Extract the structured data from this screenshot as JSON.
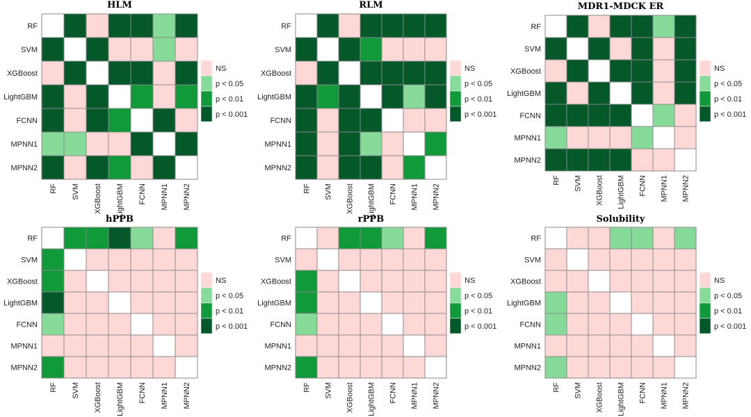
{
  "chart_data": [
    {
      "type": "heatmap",
      "title": "HLM",
      "categories": [
        "RF",
        "SVM",
        "XGBoost",
        "LightGBM",
        "FCNN",
        "MPNN1",
        "MPNN2"
      ],
      "matrix": [
        [
          "diag",
          "p<0.001",
          "NS",
          "p<0.001",
          "p<0.001",
          "p<0.05",
          "p<0.001"
        ],
        [
          "p<0.001",
          "diag",
          "p<0.001",
          "NS",
          "NS",
          "p<0.05",
          "NS"
        ],
        [
          "NS",
          "p<0.001",
          "diag",
          "p<0.001",
          "p<0.001",
          "NS",
          "p<0.001"
        ],
        [
          "p<0.001",
          "NS",
          "p<0.001",
          "diag",
          "p<0.01",
          "NS",
          "p<0.01"
        ],
        [
          "p<0.001",
          "NS",
          "p<0.001",
          "p<0.01",
          "diag",
          "p<0.001",
          "NS"
        ],
        [
          "p<0.05",
          "p<0.05",
          "NS",
          "NS",
          "p<0.001",
          "diag",
          "p<0.001"
        ],
        [
          "p<0.001",
          "NS",
          "p<0.001",
          "p<0.01",
          "NS",
          "p<0.001",
          "diag"
        ]
      ]
    },
    {
      "type": "heatmap",
      "title": "RLM",
      "categories": [
        "RF",
        "SVM",
        "XGBoost",
        "LightGBM",
        "FCNN",
        "MPNN1",
        "MPNN2"
      ],
      "matrix": [
        [
          "diag",
          "p<0.001",
          "NS",
          "p<0.001",
          "p<0.001",
          "p<0.001",
          "p<0.001"
        ],
        [
          "p<0.001",
          "diag",
          "p<0.001",
          "p<0.01",
          "NS",
          "NS",
          "NS"
        ],
        [
          "NS",
          "p<0.001",
          "diag",
          "p<0.001",
          "p<0.001",
          "p<0.001",
          "p<0.001"
        ],
        [
          "p<0.001",
          "p<0.01",
          "p<0.001",
          "diag",
          "p<0.001",
          "p<0.05",
          "p<0.001"
        ],
        [
          "p<0.001",
          "NS",
          "p<0.001",
          "p<0.001",
          "diag",
          "NS",
          "NS"
        ],
        [
          "p<0.001",
          "NS",
          "p<0.001",
          "p<0.05",
          "NS",
          "diag",
          "p<0.01"
        ],
        [
          "p<0.001",
          "NS",
          "p<0.001",
          "p<0.001",
          "NS",
          "p<0.01",
          "diag"
        ]
      ]
    },
    {
      "type": "heatmap",
      "title": "MDR1-MDCK ER",
      "categories": [
        "RF",
        "SVM",
        "XGBoost",
        "LightGBM",
        "FCNN",
        "MPNN1",
        "MPNN2"
      ],
      "matrix": [
        [
          "diag",
          "p<0.001",
          "NS",
          "p<0.001",
          "p<0.001",
          "p<0.05",
          "p<0.001"
        ],
        [
          "p<0.001",
          "diag",
          "p<0.001",
          "NS",
          "p<0.001",
          "NS",
          "p<0.001"
        ],
        [
          "NS",
          "p<0.001",
          "diag",
          "p<0.001",
          "p<0.001",
          "NS",
          "p<0.001"
        ],
        [
          "p<0.001",
          "NS",
          "p<0.001",
          "diag",
          "p<0.001",
          "NS",
          "p<0.001"
        ],
        [
          "p<0.001",
          "p<0.001",
          "p<0.001",
          "p<0.001",
          "diag",
          "p<0.05",
          "NS"
        ],
        [
          "p<0.05",
          "NS",
          "NS",
          "NS",
          "p<0.05",
          "diag",
          "NS"
        ],
        [
          "p<0.001",
          "p<0.001",
          "p<0.001",
          "p<0.001",
          "NS",
          "NS",
          "diag"
        ]
      ]
    },
    {
      "type": "heatmap",
      "title": "hPPB",
      "categories": [
        "RF",
        "SVM",
        "XGBoost",
        "LightGBM",
        "FCNN",
        "MPNN1",
        "MPNN2"
      ],
      "matrix": [
        [
          "diag",
          "p<0.01",
          "p<0.01",
          "p<0.001",
          "p<0.05",
          "NS",
          "p<0.01"
        ],
        [
          "p<0.01",
          "diag",
          "NS",
          "NS",
          "NS",
          "NS",
          "NS"
        ],
        [
          "p<0.01",
          "NS",
          "diag",
          "NS",
          "NS",
          "NS",
          "NS"
        ],
        [
          "p<0.001",
          "NS",
          "NS",
          "diag",
          "NS",
          "NS",
          "NS"
        ],
        [
          "p<0.05",
          "NS",
          "NS",
          "NS",
          "diag",
          "NS",
          "NS"
        ],
        [
          "NS",
          "NS",
          "NS",
          "NS",
          "NS",
          "diag",
          "NS"
        ],
        [
          "p<0.01",
          "NS",
          "NS",
          "NS",
          "NS",
          "NS",
          "diag"
        ]
      ]
    },
    {
      "type": "heatmap",
      "title": "rPPB",
      "categories": [
        "RF",
        "SVM",
        "XGBoost",
        "LightGBM",
        "FCNN",
        "MPNN1",
        "MPNN2"
      ],
      "matrix": [
        [
          "diag",
          "NS",
          "p<0.01",
          "p<0.01",
          "p<0.05",
          "NS",
          "p<0.01"
        ],
        [
          "NS",
          "diag",
          "NS",
          "NS",
          "NS",
          "NS",
          "NS"
        ],
        [
          "p<0.01",
          "NS",
          "diag",
          "NS",
          "NS",
          "NS",
          "NS"
        ],
        [
          "p<0.01",
          "NS",
          "NS",
          "diag",
          "NS",
          "NS",
          "NS"
        ],
        [
          "p<0.05",
          "NS",
          "NS",
          "NS",
          "diag",
          "NS",
          "NS"
        ],
        [
          "NS",
          "NS",
          "NS",
          "NS",
          "NS",
          "diag",
          "NS"
        ],
        [
          "p<0.01",
          "NS",
          "NS",
          "NS",
          "NS",
          "NS",
          "diag"
        ]
      ]
    },
    {
      "type": "heatmap",
      "title": "Solubility",
      "categories": [
        "RF",
        "SVM",
        "XGBoost",
        "LightGBM",
        "FCNN",
        "MPNN1",
        "MPNN2"
      ],
      "matrix": [
        [
          "diag",
          "NS",
          "NS",
          "p<0.05",
          "p<0.05",
          "NS",
          "p<0.05"
        ],
        [
          "NS",
          "diag",
          "NS",
          "NS",
          "NS",
          "NS",
          "NS"
        ],
        [
          "NS",
          "NS",
          "diag",
          "NS",
          "NS",
          "NS",
          "NS"
        ],
        [
          "p<0.05",
          "NS",
          "NS",
          "diag",
          "NS",
          "NS",
          "NS"
        ],
        [
          "p<0.05",
          "NS",
          "NS",
          "NS",
          "diag",
          "NS",
          "NS"
        ],
        [
          "NS",
          "NS",
          "NS",
          "NS",
          "NS",
          "diag",
          "NS"
        ],
        [
          "p<0.05",
          "NS",
          "NS",
          "NS",
          "NS",
          "NS",
          "diag"
        ]
      ]
    }
  ],
  "legend": [
    {
      "key": "NS",
      "label": "NS",
      "color": "#fdd8d6"
    },
    {
      "key": "p<0.05",
      "label": "p < 0.05",
      "color": "#85db97"
    },
    {
      "key": "p<0.01",
      "label": "p < 0.01",
      "color": "#119a3a"
    },
    {
      "key": "p<0.001",
      "label": "p < 0.001",
      "color": "#04582a"
    }
  ],
  "diag_color": "#ffffff"
}
